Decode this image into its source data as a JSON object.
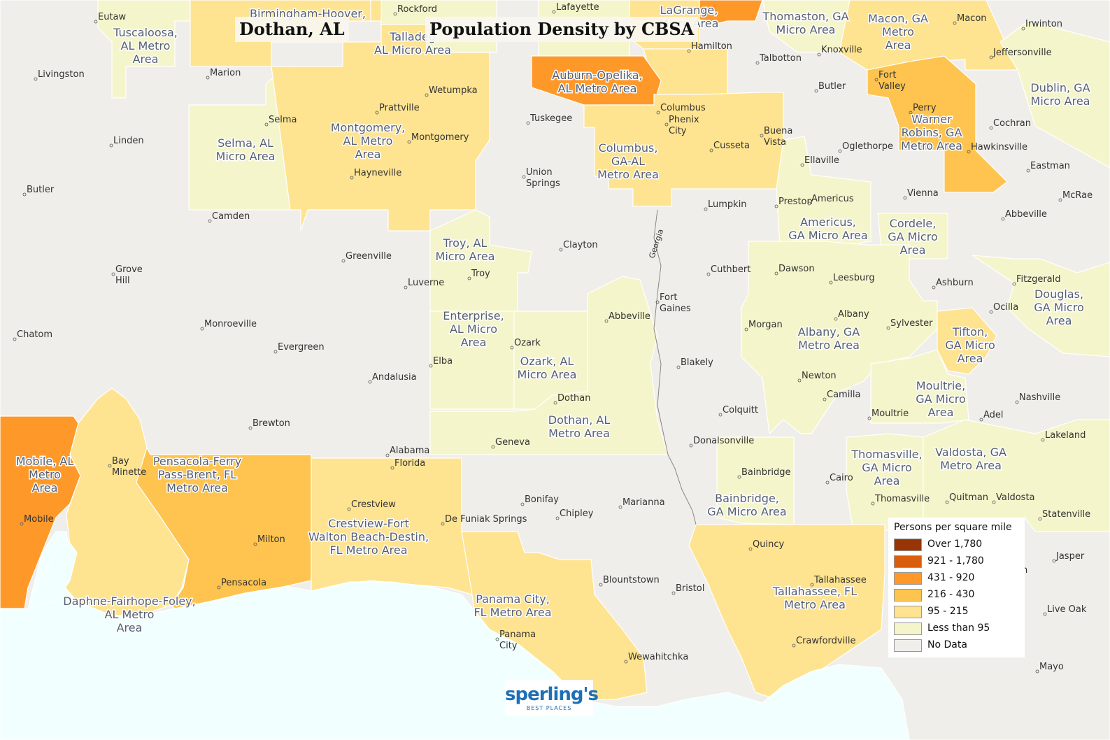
{
  "title_city": "Dothan, AL",
  "title_main": "Population Density by CBSA",
  "colors": {
    "over_1780": "#993404",
    "d921_1780": "#d95f0e",
    "d431_920": "#fe9929",
    "d216_430": "#fec44f",
    "d95_215": "#fee391",
    "lt95": "#f5f5cc",
    "nodata": "#f0eeea",
    "water": "#f1ffff"
  },
  "legend": {
    "title": "Persons per square mile",
    "items": [
      {
        "label": "Over 1,780",
        "color": "#993404"
      },
      {
        "label": "921 - 1,780",
        "color": "#d95f0e"
      },
      {
        "label": "431 - 920",
        "color": "#fe9929"
      },
      {
        "label": "216 - 430",
        "color": "#fec44f"
      },
      {
        "label": "95 - 215",
        "color": "#fee391"
      },
      {
        "label": "Less than 95",
        "color": "#f5f5cc"
      },
      {
        "label": "No Data",
        "color": "#f0eeea"
      }
    ]
  },
  "areas": [
    {
      "name": "Tuscaloosa, AL Metro Area",
      "lines": [
        "Tuscaloosa,",
        "AL Metro",
        "Area"
      ]
    },
    {
      "name": "Birmingham-Hoover, AL Metro Area",
      "lines": [
        "Birmingham-Hoover,"
      ]
    },
    {
      "name": "Talladega-Sylacauga, AL Micro Area",
      "lines": [
        "Talladeg",
        "AL Micro Area"
      ]
    },
    {
      "name": "LaGrange, GA Micro Area",
      "lines": [
        "LaGrange,",
        "Micro Area"
      ]
    },
    {
      "name": "Thomaston, GA Micro Area",
      "lines": [
        "Thomaston, GA",
        "Micro Area"
      ]
    },
    {
      "name": "Macon, GA Metro Area",
      "lines": [
        "Macon, GA",
        "Metro",
        "Area"
      ]
    },
    {
      "name": "Dublin, GA Micro Area",
      "lines": [
        "Dublin, GA",
        "Micro Area"
      ]
    },
    {
      "name": "Auburn-Opelika, AL Metro Area",
      "lines": [
        "Auburn-Opelika,",
        "AL Metro Area"
      ]
    },
    {
      "name": "Selma, AL Micro Area",
      "lines": [
        "Selma, AL",
        "Micro Area"
      ]
    },
    {
      "name": "Montgomery, AL Metro Area",
      "lines": [
        "Montgomery,",
        "AL Metro",
        "Area"
      ]
    },
    {
      "name": "Columbus, GA-AL Metro Area",
      "lines": [
        "Columbus,",
        "GA-AL",
        "Metro Area"
      ]
    },
    {
      "name": "Warner Robins, GA Metro Area",
      "lines": [
        "Warner",
        "Robins, GA",
        "Metro Area"
      ]
    },
    {
      "name": "Americus, GA Micro Area",
      "lines": [
        "Americus,",
        "GA Micro Area"
      ]
    },
    {
      "name": "Cordele, GA Micro Area",
      "lines": [
        "Cordele,",
        "GA Micro",
        "Area"
      ]
    },
    {
      "name": "Troy, AL Micro Area",
      "lines": [
        "Troy, AL",
        "Micro Area"
      ]
    },
    {
      "name": "Douglas, GA Micro Area",
      "lines": [
        "Douglas,",
        "GA Micro",
        "Area"
      ]
    },
    {
      "name": "Enterprise, AL Micro Area",
      "lines": [
        "Enterprise,",
        "AL Micro",
        "Area"
      ]
    },
    {
      "name": "Albany, GA Metro Area",
      "lines": [
        "Albany, GA",
        "Metro Area"
      ]
    },
    {
      "name": "Tifton, GA Micro Area",
      "lines": [
        "Tifton,",
        "GA Micro",
        "Area"
      ]
    },
    {
      "name": "Ozark, AL Micro Area",
      "lines": [
        "Ozark, AL",
        "Micro Area"
      ]
    },
    {
      "name": "Moultrie, GA Micro Area",
      "lines": [
        "Moultrie,",
        "GA Micro",
        "Area"
      ]
    },
    {
      "name": "Dothan, AL Metro Area",
      "lines": [
        "Dothan, AL",
        "Metro Area"
      ]
    },
    {
      "name": "Mobile, AL Metro Area",
      "lines": [
        "Mobile, AL",
        "Metro",
        "Area"
      ]
    },
    {
      "name": "Pensacola-Ferry Pass-Brent, FL Metro Area",
      "lines": [
        "Pensacola-Ferry",
        "Pass-Brent, FL",
        "Metro Area"
      ]
    },
    {
      "name": "Thomasville, GA Micro Area",
      "lines": [
        "Thomasville,",
        "GA Micro",
        "Area"
      ]
    },
    {
      "name": "Valdosta, GA Metro Area",
      "lines": [
        "Valdosta, GA",
        "Metro Area"
      ]
    },
    {
      "name": "Bainbridge, GA Micro Area",
      "lines": [
        "Bainbridge,",
        "GA Micro Area"
      ]
    },
    {
      "name": "Crestview-Fort Walton Beach-Destin, FL Metro Area",
      "lines": [
        "Crestview-Fort",
        "Walton Beach-Destin,",
        "FL Metro Area"
      ]
    },
    {
      "name": "Daphne-Fairhope-Foley, AL Metro Area",
      "lines": [
        "Daphne-Fairhope-Foley,",
        "AL Metro",
        "Area"
      ]
    },
    {
      "name": "Panama City, FL Metro Area",
      "lines": [
        "Panama City,",
        "FL Metro Area"
      ]
    },
    {
      "name": "Tallahassee, FL Metro Area",
      "lines": [
        "Tallahassee, FL",
        "Metro Area"
      ]
    }
  ],
  "places": [
    "Eutaw",
    "Rockford",
    "Lafayette",
    "Irwinton",
    "Livingston",
    "Marion",
    "Hamilton",
    "Talbotton",
    "Knoxville",
    "Macon",
    "Jeffersonville",
    "Wetumpka",
    "Butler",
    "Fort Valley",
    "Selma",
    "Prattville",
    "Tuskegee",
    "Columbus",
    "Phenix City",
    "Perry",
    "Cochran",
    "Montgomery",
    "Buena Vista",
    "Oglethorpe",
    "Hawkinsville",
    "Linden",
    "Cusseta",
    "Ellaville",
    "Eastman",
    "Hayneville",
    "Union Springs",
    "Vienna",
    "McRae",
    "Butler",
    "Americus",
    "Lumpkin",
    "Preston",
    "Abbeville",
    "Camden",
    "Clayton",
    "Greenville",
    "Grove Hill",
    "Cuthbert",
    "Dawson",
    "Fitzgerald",
    "Luverne",
    "Troy",
    "Leesburg",
    "Ashburn",
    "Fort Gaines",
    "Ocilla",
    "Abbeville",
    "Albany",
    "Chatom",
    "Morgan",
    "Sylvester",
    "Monroeville",
    "Ozark",
    "Evergreen",
    "Blakely",
    "Elba",
    "Andalusia",
    "Newton",
    "Camilla",
    "Nashville",
    "Dothan",
    "Colquitt",
    "Moultrie",
    "Adel",
    "Brewton",
    "Geneva",
    "Lakeland",
    "Donalsonville",
    "Bay Minette",
    "Bainbridge",
    "Cairo",
    "Bonifay",
    "Marianna",
    "Thomasville",
    "Quitman",
    "Valdosta",
    "Crestview",
    "De Funiak Springs",
    "Chipley",
    "Statenville",
    "Milton",
    "Quincy",
    "Jasper",
    "Mobile",
    "Pensacola",
    "Blountstown",
    "Bristol",
    "Tallahassee",
    "Live Oak",
    "Panama City",
    "Crawfordville",
    "Wewahitchka",
    "Mayo",
    "Alabama",
    "Florida",
    "Alabama",
    "Georgia",
    "n"
  ],
  "logo": {
    "brand": "sperling's",
    "tagline": "BEST PLACES"
  }
}
